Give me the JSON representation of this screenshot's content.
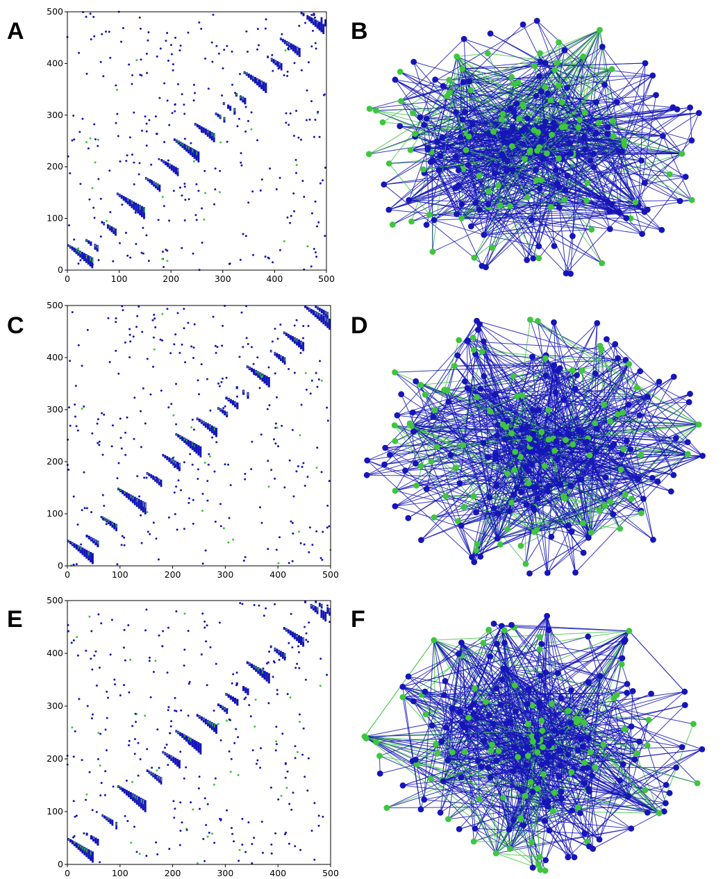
{
  "chart_data": [
    {
      "panel": "A",
      "type": "scatter",
      "xlim": [
        0,
        500
      ],
      "ylim": [
        0,
        500
      ],
      "xticks": [
        "0",
        "100",
        "200",
        "300",
        "400",
        "500"
      ],
      "yticks": [
        "0",
        "100",
        "200",
        "300",
        "400",
        "500"
      ],
      "colors": {
        "primary": "#1515b8",
        "secondary": "#3ec63e"
      },
      "blocks": [
        [
          0,
          50,
          1
        ],
        [
          35,
          60,
          0.8
        ],
        [
          65,
          95,
          0.7
        ],
        [
          95,
          150,
          1
        ],
        [
          150,
          180,
          0.8
        ],
        [
          180,
          215,
          0.9
        ],
        [
          205,
          255,
          1
        ],
        [
          245,
          285,
          0.9
        ],
        [
          285,
          305,
          0.7
        ],
        [
          300,
          325,
          0.7
        ],
        [
          320,
          345,
          0.6
        ],
        [
          340,
          385,
          1
        ],
        [
          385,
          415,
          0.7
        ],
        [
          410,
          450,
          0.9
        ],
        [
          450,
          500,
          0.6
        ],
        [
          470,
          500,
          0.4
        ]
      ],
      "seed": 11,
      "scatter_count": 300
    },
    {
      "panel": "B",
      "type": "network",
      "seed": 21,
      "colors": {
        "primary": "#1515b8",
        "secondary": "#3ec63e"
      },
      "green_fraction": 0.35
    },
    {
      "panel": "C",
      "type": "scatter",
      "xlim": [
        0,
        500
      ],
      "ylim": [
        0,
        500
      ],
      "xticks": [
        "0",
        "100",
        "200",
        "300",
        "400",
        "500"
      ],
      "yticks": [
        "0",
        "100",
        "200",
        "300",
        "400",
        "500"
      ],
      "colors": {
        "primary": "#1515b8",
        "secondary": "#3ec63e"
      },
      "blocks": [
        [
          0,
          50,
          1
        ],
        [
          35,
          60,
          0.8
        ],
        [
          65,
          95,
          0.7
        ],
        [
          95,
          150,
          1
        ],
        [
          150,
          180,
          0.8
        ],
        [
          180,
          215,
          0.9
        ],
        [
          205,
          255,
          1
        ],
        [
          245,
          285,
          0.9
        ],
        [
          285,
          305,
          0.7
        ],
        [
          300,
          325,
          0.7
        ],
        [
          320,
          345,
          0.6
        ],
        [
          340,
          385,
          1
        ],
        [
          385,
          415,
          0.7
        ],
        [
          410,
          450,
          0.9
        ],
        [
          450,
          500,
          0.6
        ],
        [
          470,
          500,
          0.4
        ]
      ],
      "seed": 33,
      "scatter_count": 300
    },
    {
      "panel": "D",
      "type": "network",
      "seed": 44,
      "colors": {
        "primary": "#1515b8",
        "secondary": "#3ec63e"
      },
      "green_fraction": 0.4
    },
    {
      "panel": "E",
      "type": "scatter",
      "xlim": [
        0,
        500
      ],
      "ylim": [
        0,
        500
      ],
      "xticks": [
        "0",
        "100",
        "200",
        "300",
        "400",
        "500"
      ],
      "yticks": [
        "0",
        "100",
        "200",
        "300",
        "400",
        "500"
      ],
      "colors": {
        "primary": "#1515b8",
        "secondary": "#3ec63e"
      },
      "blocks": [
        [
          0,
          50,
          1
        ],
        [
          35,
          60,
          0.8
        ],
        [
          65,
          95,
          0.7
        ],
        [
          95,
          150,
          1
        ],
        [
          150,
          180,
          0.8
        ],
        [
          180,
          215,
          0.9
        ],
        [
          205,
          255,
          1
        ],
        [
          245,
          285,
          0.9
        ],
        [
          285,
          305,
          0.7
        ],
        [
          300,
          325,
          0.7
        ],
        [
          320,
          345,
          0.6
        ],
        [
          340,
          385,
          1
        ],
        [
          385,
          415,
          0.7
        ],
        [
          410,
          450,
          0.9
        ],
        [
          450,
          500,
          0.6
        ],
        [
          470,
          500,
          0.4
        ]
      ],
      "seed": 55,
      "scatter_count": 300
    },
    {
      "panel": "F",
      "type": "network",
      "seed": 66,
      "colors": {
        "primary": "#1515b8",
        "secondary": "#3ec63e"
      },
      "green_fraction": 0.4
    }
  ]
}
